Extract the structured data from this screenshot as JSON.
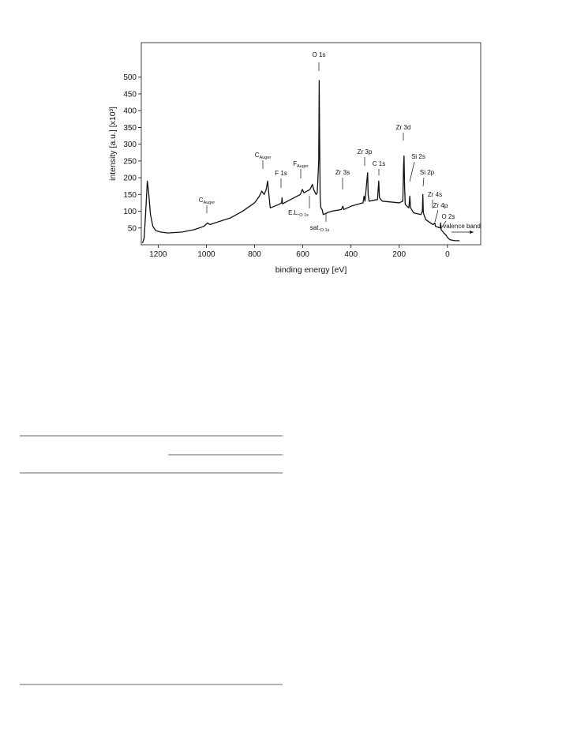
{
  "chart_data": {
    "type": "line",
    "xlabel": "binding energy [eV]",
    "ylabel": "intensity [a.u.] [x10³]",
    "xlim": [
      1270,
      -138
    ],
    "ylim": [
      0,
      603
    ],
    "xticks": [
      1200,
      1000,
      800,
      600,
      400,
      200,
      0
    ],
    "yticks": [
      50,
      100,
      150,
      200,
      250,
      300,
      350,
      400,
      450,
      500
    ],
    "series": [
      {
        "color": "#111111",
        "x": [
          1265,
          1258,
          1250,
          1245,
          1240,
          1232,
          1222,
          1210,
          1190,
          1160,
          1100,
          1050,
          1010,
          995,
          985,
          970,
          900,
          850,
          800,
          780,
          770,
          760,
          752,
          746,
          740,
          735,
          700,
          688,
          686,
          684,
          650,
          610,
          602,
          595,
          570,
          560,
          555,
          545,
          540,
          534,
          532,
          530,
          528,
          525,
          520,
          515,
          500,
          480,
          440,
          434,
          430,
          400,
          350,
          346,
          342,
          333,
          331,
          329,
          325,
          290,
          285,
          282,
          270,
          200,
          185,
          182,
          180,
          178,
          175,
          160,
          156,
          153,
          140,
          110,
          104,
          102,
          100,
          90,
          60,
          52,
          50,
          30,
          28,
          26,
          15,
          5,
          0,
          -10,
          -30,
          -50
        ],
        "values": [
          5,
          20,
          120,
          190,
          160,
          90,
          55,
          42,
          38,
          35,
          38,
          45,
          55,
          65,
          60,
          64,
          80,
          100,
          125,
          145,
          160,
          150,
          165,
          190,
          145,
          110,
          120,
          125,
          140,
          122,
          135,
          150,
          165,
          155,
          165,
          180,
          165,
          150,
          155,
          250,
          490,
          300,
          140,
          110,
          105,
          90,
          95,
          100,
          105,
          115,
          105,
          115,
          125,
          145,
          130,
          200,
          215,
          150,
          130,
          135,
          190,
          140,
          130,
          125,
          130,
          235,
          265,
          180,
          120,
          110,
          145,
          110,
          95,
          90,
          100,
          150,
          95,
          75,
          60,
          65,
          55,
          50,
          65,
          45,
          35,
          28,
          22,
          15,
          12,
          12
        ]
      }
    ],
    "annotations": [
      {
        "text": "O 1s"
      },
      {
        "text": "C",
        "sub": "Auger"
      },
      {
        "text": "C",
        "sub": "Auger"
      },
      {
        "text": "F 1s"
      },
      {
        "text": "F",
        "sub": "Auger"
      },
      {
        "text": "Zr 3s"
      },
      {
        "text": "Zr 3p"
      },
      {
        "text": "C 1s"
      },
      {
        "text": "Zr 3d"
      },
      {
        "text": "Si 2s"
      },
      {
        "text": "Si 2p"
      },
      {
        "text": "Zr 4s"
      },
      {
        "text": "Zr 4p"
      },
      {
        "text": "O 2s"
      },
      {
        "text": "valence band"
      },
      {
        "text": "E.L.",
        "sub": "O 1s"
      },
      {
        "text": "sat.",
        "sub": "O 1s"
      }
    ]
  }
}
